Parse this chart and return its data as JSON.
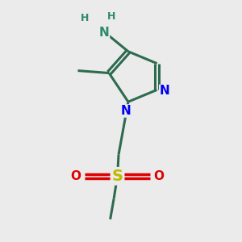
{
  "background_color": "#ebebeb",
  "bond_color": "#2d6b50",
  "bond_width": 2.2,
  "N_color": "#0000ee",
  "O_color": "#dd0000",
  "S_color": "#bbbb00",
  "H_color": "#2d8b6a",
  "figsize": [
    3.0,
    3.0
  ],
  "dpi": 100,
  "xlim": [
    0,
    10
  ],
  "ylim": [
    0,
    10
  ]
}
